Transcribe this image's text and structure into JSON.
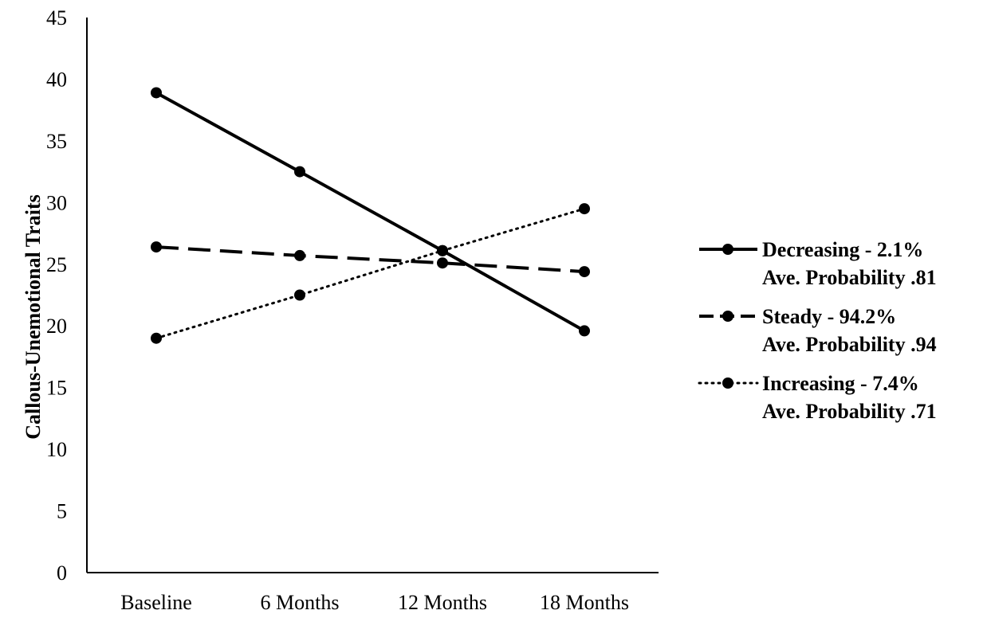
{
  "chart_data": {
    "type": "line",
    "title": "",
    "xlabel": "",
    "ylabel": "Callous-Unemotional Traits",
    "categories": [
      "Baseline",
      "6 Months",
      "12 Months",
      "18 Months"
    ],
    "ylim": [
      0,
      45
    ],
    "yticks": [
      0,
      5,
      10,
      15,
      20,
      25,
      30,
      35,
      40,
      45
    ],
    "grid": false,
    "legend_position": "right",
    "series": [
      {
        "name": "Decreasing - 2.1%",
        "sublabel": "Ave. Probability .81",
        "style": "solid",
        "color": "#000000",
        "values": [
          38.9,
          32.5,
          26.1,
          19.6
        ]
      },
      {
        "name": "Steady - 94.2%",
        "sublabel": "Ave. Probability .94",
        "style": "dashed",
        "color": "#000000",
        "values": [
          26.4,
          25.7,
          25.1,
          24.4
        ]
      },
      {
        "name": "Increasing - 7.4%",
        "sublabel": "Ave. Probability .71",
        "style": "dotted",
        "color": "#000000",
        "values": [
          19.0,
          22.5,
          26.1,
          29.5
        ]
      }
    ]
  }
}
